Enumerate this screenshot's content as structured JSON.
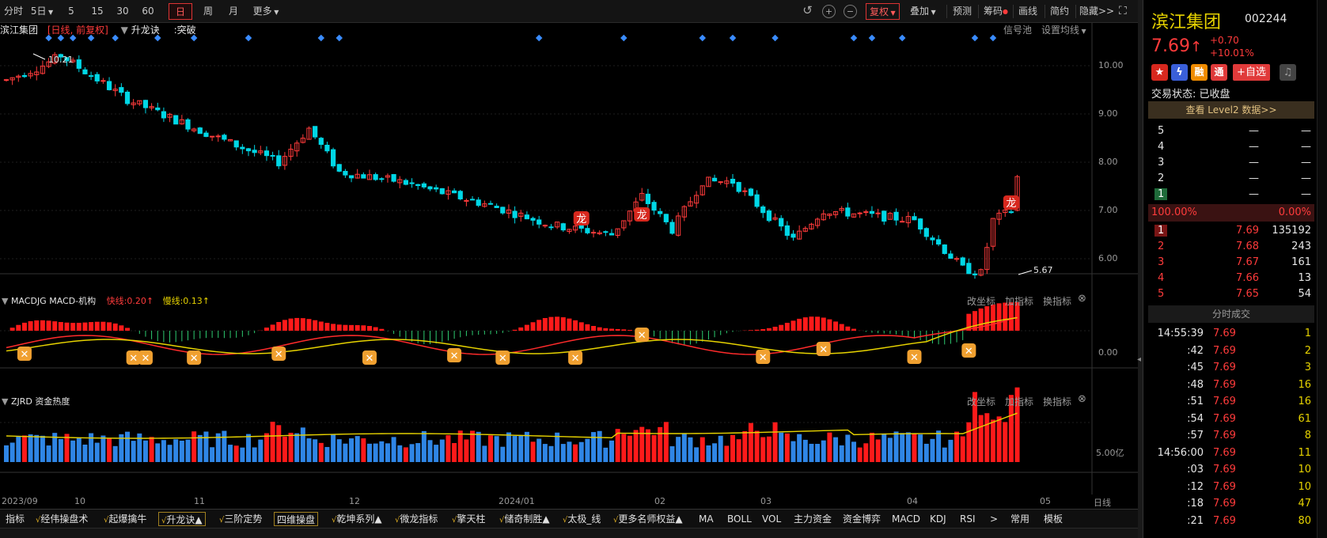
{
  "toolbar": {
    "periods": [
      "分时",
      "5日",
      "5",
      "15",
      "30",
      "60",
      "日",
      "周",
      "月",
      "更多"
    ],
    "active_period": "日",
    "tools": [
      "复权",
      "叠加",
      "预测",
      "筹码",
      "画线",
      "简约",
      "隐藏>>"
    ]
  },
  "chart_header": {
    "name": "滨江集团",
    "cycle": "[日线, 前复权]",
    "indicator": "升龙诀",
    "signal": ":突破",
    "right_links": [
      "信号池",
      "设置均线"
    ]
  },
  "price_axis": [
    "10.00",
    "9.00",
    "8.00",
    "7.00",
    "6.00"
  ],
  "annotations": {
    "high": "10.21",
    "low": "5.67",
    "dragon_label": "龙"
  },
  "macd_header": {
    "name": "MACDJG MACD-机构",
    "fast": "快线:0.20↑",
    "slow": "慢线:0.13↑",
    "axis": "0.00",
    "links": [
      "改坐标",
      "加指标",
      "换指标"
    ]
  },
  "zjrd_header": {
    "name": "ZJRD 资金热度",
    "axis": "5.00亿",
    "links": [
      "改坐标",
      "加指标",
      "换指标"
    ]
  },
  "date_axis": [
    "2023/09",
    "10",
    "11",
    "12",
    "2024/01",
    "02",
    "03",
    "04",
    "05"
  ],
  "date_axis_right": "日线",
  "indicator_bar": [
    {
      "label": "指标",
      "v": false,
      "boxed": false
    },
    {
      "label": "经伟操盘术",
      "v": true,
      "boxed": false
    },
    {
      "label": "起爆擒牛",
      "v": true,
      "boxed": false
    },
    {
      "label": "升龙诀▲",
      "v": true,
      "boxed": true
    },
    {
      "label": "三阶定势",
      "v": true,
      "boxed": false
    },
    {
      "label": "四维操盘",
      "v": false,
      "boxed": true
    },
    {
      "label": "乾坤系列▲",
      "v": true,
      "boxed": false
    },
    {
      "label": "微龙指标",
      "v": true,
      "boxed": false
    },
    {
      "label": "擎天柱",
      "v": true,
      "boxed": false
    },
    {
      "label": "储奇制胜▲",
      "v": true,
      "boxed": false
    },
    {
      "label": "太极_线",
      "v": true,
      "boxed": false
    },
    {
      "label": "更多名师权益▲",
      "v": true,
      "boxed": false
    },
    {
      "label": "MA",
      "v": false,
      "boxed": false
    },
    {
      "label": "BOLL",
      "v": false,
      "boxed": false
    },
    {
      "label": "VOL",
      "v": false,
      "boxed": false
    },
    {
      "label": "主力资金",
      "v": false,
      "boxed": false
    },
    {
      "label": "资金博弈",
      "v": false,
      "boxed": false
    },
    {
      "label": "MACD",
      "v": false,
      "boxed": false
    },
    {
      "label": "KDJ",
      "v": false,
      "boxed": false
    },
    {
      "label": "RSI",
      "v": false,
      "boxed": false
    },
    {
      "label": ">",
      "v": false,
      "boxed": false
    },
    {
      "label": "常用",
      "v": false,
      "boxed": false
    },
    {
      "label": "模板",
      "v": false,
      "boxed": false
    }
  ],
  "quote": {
    "name": "滨江集团",
    "code": "002244",
    "price": "7.69",
    "arrow": "↑",
    "change": "+0.70",
    "pct": "+10.01%",
    "badges": [
      "融",
      "通"
    ],
    "add_fav": "+自选",
    "status_label": "交易状态:",
    "status": "已收盘",
    "level2": "查看 Level2 数据>>",
    "asks": [
      {
        "level": "5",
        "price": "—",
        "vol": "—"
      },
      {
        "level": "4",
        "price": "—",
        "vol": "—"
      },
      {
        "level": "3",
        "price": "—",
        "vol": "—"
      },
      {
        "level": "2",
        "price": "—",
        "vol": "—"
      },
      {
        "level": "1",
        "price": "—",
        "vol": "—"
      }
    ],
    "ratio_left": "100.00%",
    "ratio_right": "0.00%",
    "bids": [
      {
        "level": "1",
        "price": "7.69",
        "vol": "135192"
      },
      {
        "level": "2",
        "price": "7.68",
        "vol": "243"
      },
      {
        "level": "3",
        "price": "7.67",
        "vol": "161"
      },
      {
        "level": "4",
        "price": "7.66",
        "vol": "13"
      },
      {
        "level": "5",
        "price": "7.65",
        "vol": "54"
      }
    ],
    "ticks_title": "分时成交",
    "ticks": [
      {
        "time": "14:55:39",
        "price": "7.69",
        "vol": "1"
      },
      {
        "time": ":42",
        "price": "7.69",
        "vol": "2"
      },
      {
        "time": ":45",
        "price": "7.69",
        "vol": "3"
      },
      {
        "time": ":48",
        "price": "7.69",
        "vol": "16"
      },
      {
        "time": ":51",
        "price": "7.69",
        "vol": "16"
      },
      {
        "time": ":54",
        "price": "7.69",
        "vol": "61"
      },
      {
        "time": ":57",
        "price": "7.69",
        "vol": "8"
      },
      {
        "time": "14:56:00",
        "price": "7.69",
        "vol": "11"
      },
      {
        "time": ":03",
        "price": "7.69",
        "vol": "10"
      },
      {
        "time": ":12",
        "price": "7.69",
        "vol": "10"
      },
      {
        "time": ":18",
        "price": "7.69",
        "vol": "47"
      },
      {
        "time": ":21",
        "price": "7.69",
        "vol": "80"
      }
    ]
  },
  "colors": {
    "up": "#ff3b3b",
    "down": "#00d7e6",
    "vol_up": "#ff1a1a",
    "vol_down": "#2f86e6",
    "ma": "#e6d200",
    "signal": "#3a8cff"
  }
}
